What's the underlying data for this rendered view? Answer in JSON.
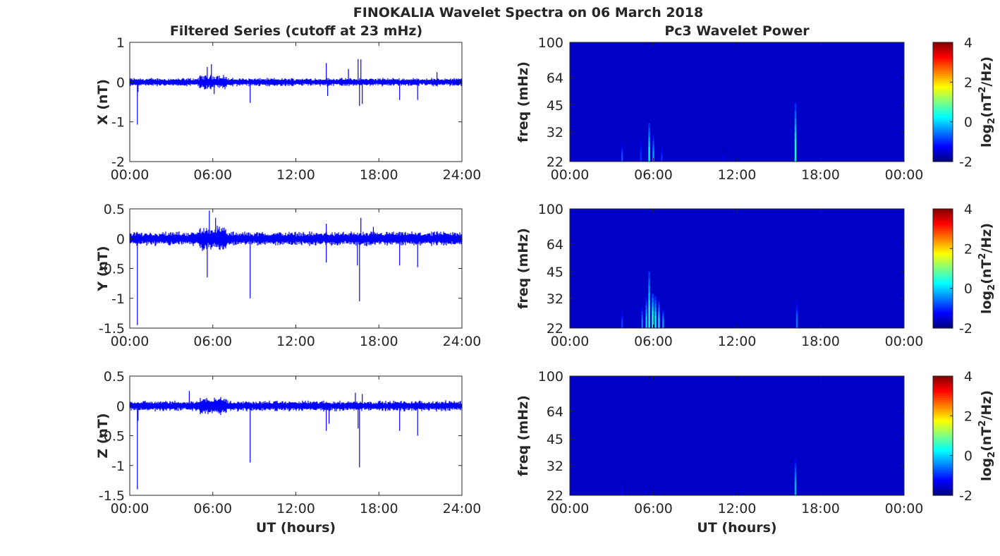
{
  "figure": {
    "title": "FINOKALIA Wavelet Spectra on 06 March 2018",
    "left_title": "Filtered Series (cutoff at 23 mHz)",
    "right_title": "Pc3 Wavelet Power",
    "xlabel": "UT (hours)"
  },
  "chart_data": [
    {
      "type": "line",
      "title": "Filtered Series (cutoff at 23 mHz)",
      "component": "X",
      "ylabel": "X (nT)",
      "xlabel": "",
      "x_ticks": [
        "00:00",
        "06:00",
        "12:00",
        "18:00",
        "24:00"
      ],
      "xlim_hours": [
        0,
        24
      ],
      "y_ticks": [
        "1",
        "0",
        "-1",
        "-2"
      ],
      "ylim": [
        -2,
        1
      ],
      "series_color": "#0000ff",
      "noise_amplitude": 0.07,
      "spikes": [
        {
          "t": 0.55,
          "v": -1.07
        },
        {
          "t": 0.6,
          "v": -0.25
        },
        {
          "t": 5.6,
          "v": 0.38
        },
        {
          "t": 5.9,
          "v": 0.45
        },
        {
          "t": 6.1,
          "v": -0.3
        },
        {
          "t": 8.7,
          "v": -0.52
        },
        {
          "t": 14.2,
          "v": 0.48
        },
        {
          "t": 14.3,
          "v": -0.35
        },
        {
          "t": 15.8,
          "v": 0.33
        },
        {
          "t": 16.5,
          "v": 0.58
        },
        {
          "t": 16.7,
          "v": 0.57
        },
        {
          "t": 16.6,
          "v": -0.6
        },
        {
          "t": 16.8,
          "v": -0.55
        },
        {
          "t": 19.5,
          "v": -0.45
        },
        {
          "t": 20.8,
          "v": -0.45
        },
        {
          "t": 22.2,
          "v": 0.25
        }
      ]
    },
    {
      "type": "line",
      "component": "Y",
      "ylabel": "Y (nT)",
      "xlabel": "",
      "x_ticks": [
        "00:00",
        "06:00",
        "12:00",
        "18:00",
        "24:00"
      ],
      "xlim_hours": [
        0,
        24
      ],
      "y_ticks": [
        "0.5",
        "0",
        "-0.5",
        "-1",
        "-1.5"
      ],
      "ylim": [
        -1.5,
        0.5
      ],
      "series_color": "#0000ff",
      "noise_amplitude": 0.08,
      "spikes": [
        {
          "t": 0.55,
          "v": -1.45
        },
        {
          "t": 5.6,
          "v": -0.65
        },
        {
          "t": 5.75,
          "v": 0.47
        },
        {
          "t": 6.2,
          "v": 0.35
        },
        {
          "t": 8.7,
          "v": -1.0
        },
        {
          "t": 14.2,
          "v": -0.4
        },
        {
          "t": 14.2,
          "v": 0.25
        },
        {
          "t": 16.6,
          "v": -1.05
        },
        {
          "t": 16.45,
          "v": -0.45
        },
        {
          "t": 16.7,
          "v": 0.35
        },
        {
          "t": 19.5,
          "v": -0.45
        },
        {
          "t": 20.8,
          "v": -0.48
        },
        {
          "t": 17.6,
          "v": 0.2
        }
      ]
    },
    {
      "type": "line",
      "component": "Z",
      "ylabel": "Z (nT)",
      "xlabel": "UT (hours)",
      "x_ticks": [
        "00:00",
        "06:00",
        "12:00",
        "18:00",
        "24:00"
      ],
      "xlim_hours": [
        0,
        24
      ],
      "y_ticks": [
        "0.5",
        "0",
        "-0.5",
        "-1",
        "-1.5"
      ],
      "ylim": [
        -1.5,
        0.5
      ],
      "series_color": "#0000ff",
      "noise_amplitude": 0.06,
      "spikes": [
        {
          "t": 0.55,
          "v": -1.4
        },
        {
          "t": 0.6,
          "v": -0.25
        },
        {
          "t": 4.3,
          "v": 0.25
        },
        {
          "t": 8.7,
          "v": -0.95
        },
        {
          "t": 14.2,
          "v": -0.42
        },
        {
          "t": 14.4,
          "v": -0.3
        },
        {
          "t": 16.3,
          "v": 0.22
        },
        {
          "t": 16.5,
          "v": -0.38
        },
        {
          "t": 16.6,
          "v": -1.03
        },
        {
          "t": 16.8,
          "v": 0.2
        },
        {
          "t": 19.5,
          "v": -0.42
        },
        {
          "t": 20.8,
          "v": -0.5
        }
      ]
    },
    {
      "type": "heatmap",
      "title": "Pc3 Wavelet Power",
      "ylabel": "freq (mHz)",
      "xlabel": "",
      "x_ticks": [
        "00:00",
        "06:00",
        "12:00",
        "18:00",
        "00:00"
      ],
      "xlim_hours": [
        0,
        24
      ],
      "y_ticks": [
        "100",
        "64",
        "45",
        "32",
        "22"
      ],
      "y_scale": "log",
      "ylim": [
        22,
        100
      ],
      "colorbar_label": "log2(nT2/Hz)",
      "colorbar_ticks": [
        "4",
        "2",
        "0",
        "-2"
      ],
      "clim": [
        -2,
        4
      ],
      "background_value": -2,
      "bursts": [
        {
          "t": 3.75,
          "f_top": 28,
          "peak": -0.8
        },
        {
          "t": 5.1,
          "f_top": 30,
          "peak": -1.0
        },
        {
          "t": 5.7,
          "f_top": 36,
          "peak": 0.2
        },
        {
          "t": 6.0,
          "f_top": 31,
          "peak": -0.3
        },
        {
          "t": 6.6,
          "f_top": 27,
          "peak": -1.0
        },
        {
          "t": 11.0,
          "f_top": 26,
          "peak": -1.4
        },
        {
          "t": 16.2,
          "f_top": 46,
          "peak": 0.3
        }
      ]
    },
    {
      "type": "heatmap",
      "ylabel": "freq (mHz)",
      "xlabel": "",
      "x_ticks": [
        "00:00",
        "06:00",
        "12:00",
        "18:00",
        "00:00"
      ],
      "xlim_hours": [
        0,
        24
      ],
      "y_ticks": [
        "100",
        "64",
        "45",
        "32",
        "22"
      ],
      "y_scale": "log",
      "ylim": [
        22,
        100
      ],
      "colorbar_label": "log2(nT2/Hz)",
      "colorbar_ticks": [
        "4",
        "2",
        "0",
        "-2"
      ],
      "clim": [
        -2,
        4
      ],
      "background_value": -2,
      "bursts": [
        {
          "t": 3.75,
          "f_top": 28,
          "peak": -0.9
        },
        {
          "t": 5.2,
          "f_top": 29,
          "peak": -0.5
        },
        {
          "t": 5.5,
          "f_top": 32,
          "peak": 0.0
        },
        {
          "t": 5.7,
          "f_top": 45,
          "peak": 0.4
        },
        {
          "t": 5.95,
          "f_top": 34,
          "peak": 0.5
        },
        {
          "t": 6.15,
          "f_top": 33,
          "peak": 0.2
        },
        {
          "t": 6.4,
          "f_top": 31,
          "peak": 0.1
        },
        {
          "t": 6.7,
          "f_top": 28,
          "peak": -0.3
        },
        {
          "t": 16.3,
          "f_top": 31,
          "peak": -0.6
        }
      ]
    },
    {
      "type": "heatmap",
      "ylabel": "freq (mHz)",
      "xlabel": "UT (hours)",
      "x_ticks": [
        "00:00",
        "06:00",
        "12:00",
        "18:00",
        "00:00"
      ],
      "xlim_hours": [
        0,
        24
      ],
      "y_ticks": [
        "100",
        "64",
        "45",
        "32",
        "22"
      ],
      "y_scale": "log",
      "ylim": [
        22,
        100
      ],
      "colorbar_label": "log2(nT2/Hz)",
      "colorbar_ticks": [
        "4",
        "2",
        "0",
        "-2"
      ],
      "clim": [
        -2,
        4
      ],
      "background_value": -2,
      "bursts": [
        {
          "t": 3.75,
          "f_top": 26,
          "peak": -1.3
        },
        {
          "t": 16.2,
          "f_top": 35,
          "peak": -0.2
        },
        {
          "t": 5.9,
          "f_top": 24,
          "peak": -1.6
        }
      ]
    }
  ]
}
